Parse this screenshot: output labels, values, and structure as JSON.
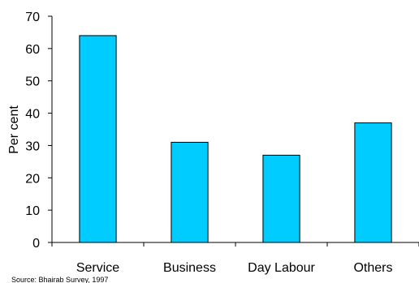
{
  "chart_data": {
    "type": "bar",
    "categories": [
      "Service",
      "Business",
      "Day Labour",
      "Others"
    ],
    "values": [
      64,
      31,
      27,
      37
    ],
    "ylabel": "Per cent",
    "ylim": [
      0,
      70
    ],
    "yticks": [
      0,
      10,
      20,
      30,
      40,
      50,
      60,
      70
    ],
    "grid": false,
    "bar_color": "#00ccff",
    "bar_edge_color": "#000000"
  },
  "source_note": "Source: Bhairab Survey, 1997"
}
